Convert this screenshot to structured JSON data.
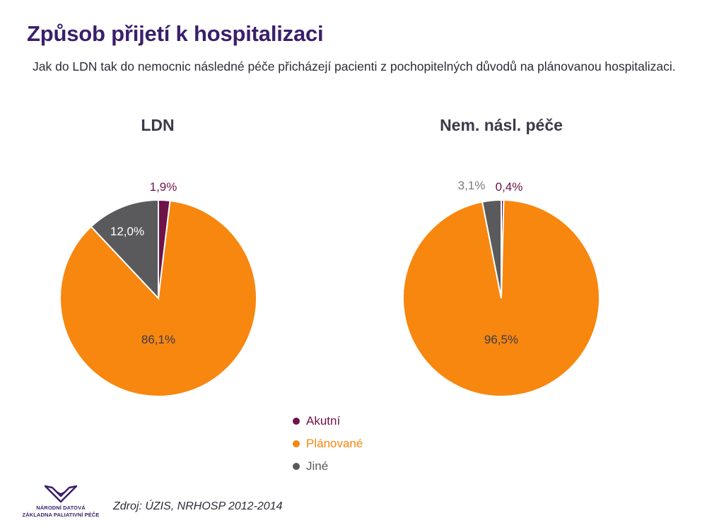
{
  "title": "Způsob přijetí k hospitalizaci",
  "subtitle": "Jak do LDN tak do nemocnic následné péče přicházejí pacienti z pochopitelných důvodů na plánovanou hospitalizaci.",
  "colors": {
    "Akutní": "#6e1248",
    "Plánované": "#f7870f",
    "Jiné": "#5a5a5c",
    "title": "#3b1f6b"
  },
  "legend": [
    {
      "label": "Akutní",
      "color": "#6e1248"
    },
    {
      "label": "Plánované",
      "color": "#f7870f"
    },
    {
      "label": "Jiné",
      "color": "#5a5a5c"
    }
  ],
  "chart_data": [
    {
      "type": "pie",
      "title": "LDN",
      "categories": [
        "Akutní",
        "Plánované",
        "Jiné"
      ],
      "values": [
        1.9,
        86.1,
        12.0
      ],
      "labels": [
        "1,9%",
        "86,1%",
        "12,0%"
      ]
    },
    {
      "type": "pie",
      "title": "Nem. násl. péče",
      "categories": [
        "Akutní",
        "Plánované",
        "Jiné"
      ],
      "values": [
        0.4,
        96.5,
        3.1
      ],
      "labels": [
        "0,4%",
        "96,5%",
        "3,1%"
      ]
    }
  ],
  "source": "Zdroj: ÚZIS, NRHOSP 2012-2014",
  "logo": {
    "line1": "NÁRODNÍ DATOVÁ",
    "line2": "ZÁKLADNA PALIATIVNÍ PÉČE",
    "icon": "wings-logo-icon"
  }
}
